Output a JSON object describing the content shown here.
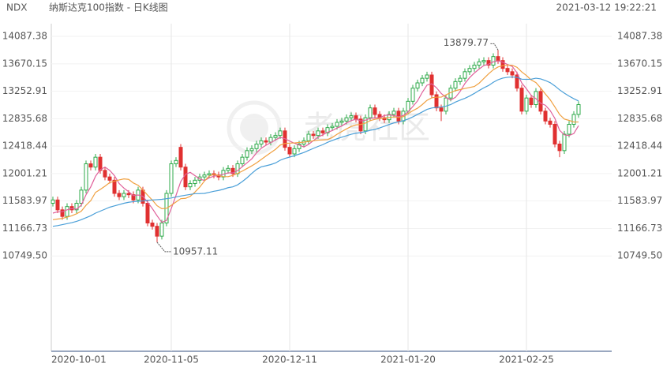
{
  "header": {
    "symbol": "NDX",
    "title": "纳斯达克100指数 - 日K线图",
    "timestamp": "2021-03-12 19:22:21"
  },
  "chart_data": {
    "type": "candlestick",
    "watermark": "老虎社区",
    "up_color": "#2eaa4a",
    "down_color": "#e03030",
    "ylim": [
      9300,
      14280
    ],
    "yticks": [
      14087.38,
      13670.15,
      13252.91,
      12835.68,
      12418.44,
      12001.21,
      11583.97,
      11166.73,
      {
        "value": 10749.5,
        "label": "10749.50"
      }
    ],
    "categories": [
      "2020-10-01",
      null,
      null,
      null,
      null,
      null,
      null,
      null,
      null,
      null,
      null,
      null,
      null,
      null,
      null,
      null,
      null,
      null,
      null,
      null,
      null,
      null,
      null,
      null,
      null,
      "2020-11-05",
      null,
      null,
      null,
      null,
      null,
      null,
      null,
      null,
      null,
      null,
      null,
      null,
      null,
      null,
      null,
      null,
      null,
      null,
      null,
      null,
      null,
      null,
      null,
      null,
      "2020-12-11",
      null,
      null,
      null,
      null,
      null,
      null,
      null,
      null,
      null,
      null,
      null,
      null,
      null,
      null,
      null,
      null,
      null,
      null,
      null,
      null,
      null,
      null,
      null,
      null,
      "2021-01-20",
      null,
      null,
      null,
      null,
      null,
      null,
      null,
      null,
      null,
      null,
      null,
      null,
      null,
      null,
      null,
      null,
      null,
      null,
      null,
      null,
      null,
      null,
      null,
      null,
      "2021-02-25",
      null,
      null,
      null,
      null,
      null,
      null,
      null,
      null,
      null,
      null,
      null
    ],
    "candles": [
      [
        11550,
        11650,
        11500,
        11600
      ],
      [
        11600,
        11650,
        11400,
        11450
      ],
      [
        11450,
        11500,
        11300,
        11350
      ],
      [
        11350,
        11550,
        11300,
        11500
      ],
      [
        11500,
        11550,
        11400,
        11450
      ],
      [
        11450,
        11600,
        11400,
        11550
      ],
      [
        11550,
        11800,
        11500,
        11750
      ],
      [
        11750,
        12200,
        11700,
        12150
      ],
      [
        12150,
        12200,
        12050,
        12100
      ],
      [
        12100,
        12300,
        12050,
        12250
      ],
      [
        12250,
        12300,
        12000,
        12050
      ],
      [
        12050,
        12100,
        11900,
        11950
      ],
      [
        11950,
        12000,
        11850,
        11900
      ],
      [
        11900,
        11950,
        11650,
        11700
      ],
      [
        11700,
        11750,
        11600,
        11650
      ],
      [
        11650,
        11750,
        11600,
        11700
      ],
      [
        11700,
        11750,
        11630,
        11680
      ],
      [
        11680,
        11730,
        11550,
        11600
      ],
      [
        11600,
        11800,
        11550,
        11750
      ],
      [
        11750,
        11800,
        11500,
        11550
      ],
      [
        11550,
        11600,
        11200,
        11250
      ],
      [
        11250,
        11300,
        11150,
        11200
      ],
      [
        11200,
        11250,
        10957.11,
        11050
      ],
      [
        11050,
        11300,
        11000,
        11250
      ],
      [
        11250,
        11750,
        11200,
        11700
      ],
      [
        11700,
        12200,
        11650,
        12150
      ],
      [
        12150,
        12250,
        12100,
        12200
      ],
      [
        12400,
        12450,
        12050,
        12100
      ],
      [
        12100,
        12150,
        11750,
        11800
      ],
      [
        11800,
        11900,
        11750,
        11850
      ],
      [
        11850,
        11950,
        11800,
        11900
      ],
      [
        11900,
        12000,
        11850,
        11950
      ],
      [
        11950,
        12030,
        11900,
        11980
      ],
      [
        11980,
        12050,
        11930,
        12000
      ],
      [
        12000,
        12050,
        11930,
        11980
      ],
      [
        11980,
        12030,
        11900,
        11950
      ],
      [
        11950,
        12100,
        11900,
        12050
      ],
      [
        12050,
        12130,
        12000,
        12080
      ],
      [
        12080,
        12130,
        11950,
        12000
      ],
      [
        12000,
        12200,
        11950,
        12150
      ],
      [
        12150,
        12300,
        12100,
        12250
      ],
      [
        12250,
        12400,
        12200,
        12350
      ],
      [
        12350,
        12430,
        12300,
        12380
      ],
      [
        12380,
        12500,
        12330,
        12450
      ],
      [
        12450,
        12550,
        12400,
        12500
      ],
      [
        12500,
        12550,
        12430,
        12480
      ],
      [
        12480,
        12600,
        12430,
        12550
      ],
      [
        12550,
        12630,
        12500,
        12580
      ],
      [
        12580,
        12700,
        12530,
        12650
      ],
      [
        12650,
        12700,
        12350,
        12400
      ],
      [
        12400,
        12450,
        12250,
        12300
      ],
      [
        12300,
        12430,
        12250,
        12380
      ],
      [
        12380,
        12500,
        12330,
        12450
      ],
      [
        12450,
        12550,
        12400,
        12500
      ],
      [
        12500,
        12650,
        12450,
        12600
      ],
      [
        12600,
        12650,
        12530,
        12580
      ],
      [
        12580,
        12700,
        12530,
        12650
      ],
      [
        12650,
        12700,
        12570,
        12620
      ],
      [
        12620,
        12750,
        12570,
        12700
      ],
      [
        12700,
        12770,
        12650,
        12720
      ],
      [
        12720,
        12830,
        12670,
        12780
      ],
      [
        12780,
        12850,
        12730,
        12800
      ],
      [
        12800,
        12900,
        12750,
        12850
      ],
      [
        12850,
        12930,
        12800,
        12880
      ],
      [
        12880,
        12930,
        12780,
        12830
      ],
      [
        12830,
        12880,
        12600,
        12650
      ],
      [
        12650,
        12900,
        12600,
        12850
      ],
      [
        12850,
        13050,
        12800,
        13000
      ],
      [
        13000,
        13050,
        12850,
        12900
      ],
      [
        12900,
        12950,
        12800,
        12850
      ],
      [
        12850,
        12900,
        12770,
        12820
      ],
      [
        12820,
        12950,
        12770,
        12900
      ],
      [
        12900,
        13000,
        12850,
        12950
      ],
      [
        12950,
        13000,
        12750,
        12800
      ],
      [
        12800,
        13000,
        12750,
        12950
      ],
      [
        12950,
        13150,
        12900,
        13100
      ],
      [
        13100,
        13350,
        13050,
        13300
      ],
      [
        13300,
        13430,
        13250,
        13380
      ],
      [
        13380,
        13500,
        13330,
        13450
      ],
      [
        13450,
        13550,
        13400,
        13500
      ],
      [
        13500,
        13550,
        13150,
        13200
      ],
      [
        13200,
        13250,
        12950,
        13000
      ],
      [
        13000,
        13050,
        12800,
        12950
      ],
      [
        12950,
        13200,
        12900,
        13150
      ],
      [
        13150,
        13350,
        13100,
        13300
      ],
      [
        13300,
        13450,
        13250,
        13400
      ],
      [
        13400,
        13500,
        13350,
        13450
      ],
      [
        13450,
        13600,
        13400,
        13550
      ],
      [
        13550,
        13650,
        13500,
        13600
      ],
      [
        13600,
        13700,
        13550,
        13650
      ],
      [
        13650,
        13750,
        13600,
        13700
      ],
      [
        13700,
        13770,
        13650,
        13720
      ],
      [
        13720,
        13770,
        13600,
        13650
      ],
      [
        13650,
        13830,
        13600,
        13780
      ],
      [
        13780,
        13879.77,
        13670,
        13720
      ],
      [
        13720,
        13770,
        13550,
        13600
      ],
      [
        13600,
        13650,
        13500,
        13550
      ],
      [
        13550,
        13600,
        13450,
        13500
      ],
      [
        13500,
        13550,
        13250,
        13300
      ],
      [
        13300,
        13350,
        12900,
        12950
      ],
      [
        12950,
        13200,
        12900,
        13150
      ],
      [
        13150,
        13200,
        13000,
        13050
      ],
      [
        13050,
        13300,
        13000,
        13250
      ],
      [
        13250,
        13300,
        12900,
        12950
      ],
      [
        12950,
        13000,
        12750,
        12800
      ],
      [
        12800,
        12850,
        12700,
        12750
      ],
      [
        12750,
        12800,
        12400,
        12450
      ],
      [
        12450,
        12500,
        12250,
        12350
      ],
      [
        12350,
        12650,
        12300,
        12600
      ],
      [
        12600,
        12800,
        12550,
        12750
      ],
      [
        12750,
        12950,
        12700,
        12900
      ],
      [
        12900,
        13100,
        12850,
        13050
      ]
    ],
    "series": [
      {
        "color": "#e0609a",
        "values": [
          11400,
          11420,
          11420,
          11450,
          11470,
          11460,
          11520,
          11680,
          11800,
          11960,
          12060,
          12100,
          12050,
          11970,
          11850,
          11780,
          11726,
          11666,
          11676,
          11656,
          11566,
          11470,
          11360,
          11260,
          11290,
          11470,
          11670,
          11880,
          11990,
          12020,
          11970,
          11920,
          11896,
          11936,
          11962,
          11972,
          11992,
          12012,
          12012,
          12046,
          12106,
          12166,
          12226,
          12316,
          12386,
          12432,
          12472,
          12512,
          12552,
          12532,
          12496,
          12462,
          12436,
          12406,
          12446,
          12502,
          12556,
          12590,
          12630,
          12654,
          12694,
          12724,
          12770,
          12806,
          12828,
          12802,
          12812,
          12842,
          12846,
          12850,
          12884,
          12894,
          12884,
          12864,
          12884,
          12940,
          13020,
          13106,
          13236,
          13346,
          13366,
          13306,
          13220,
          13160,
          13120,
          13160,
          13250,
          13370,
          13460,
          13530,
          13590,
          13644,
          13664,
          13700,
          13714,
          13694,
          13660,
          13630,
          13534,
          13380,
          13290,
          13190,
          13140,
          13070,
          13040,
          12960,
          12840,
          12660,
          12590,
          12580,
          12610,
          12730
        ]
      },
      {
        "color": "#f0a040",
        "values": [
          11300,
          11310,
          11320,
          11340,
          11360,
          11390,
          11430,
          11520,
          11590,
          11715,
          11760,
          11810,
          11865,
          11885,
          11905,
          11920,
          11913,
          11858,
          11823,
          11753,
          11673,
          11598,
          11513,
          11468,
          11473,
          11518,
          11570,
          11620,
          11625,
          11655,
          11720,
          11795,
          11888,
          11963,
          11991,
          11971,
          11956,
          11954,
          11974,
          12004,
          12039,
          12079,
          12119,
          12164,
          12216,
          12269,
          12319,
          12369,
          12434,
          12459,
          12464,
          12467,
          12474,
          12479,
          12489,
          12499,
          12509,
          12513,
          12518,
          12550,
          12598,
          12640,
          12680,
          12718,
          12741,
          12748,
          12768,
          12806,
          12826,
          12839,
          12843,
          12853,
          12863,
          12855,
          12867,
          12912,
          12957,
          12995,
          13050,
          13115,
          13153,
          13163,
          13163,
          13198,
          13233,
          13263,
          13278,
          13295,
          13310,
          13325,
          13375,
          13447,
          13517,
          13580,
          13622,
          13642,
          13652,
          13647,
          13617,
          13547,
          13492,
          13425,
          13385,
          13302,
          13210,
          13125,
          13015,
          12900,
          12830,
          12810,
          12785,
          12785
        ]
      },
      {
        "color": "#4a9fd8",
        "values": [
          11200,
          11210,
          11225,
          11240,
          11255,
          11275,
          11300,
          11330,
          11360,
          11400,
          11430,
          11460,
          11490,
          11510,
          11530,
          11550,
          11565,
          11575,
          11580,
          11585,
          11595,
          11600,
          11605,
          11610,
          11620,
          11630,
          11645,
          11660,
          11672,
          11684,
          11696,
          11697,
          11700,
          11716,
          11732,
          11745,
          11763,
          11787,
          11800,
          11830,
          11880,
          11937,
          12004,
          12064,
          12104,
          12120,
          12138,
          12162,
          12204,
          12232,
          12252,
          12273,
          12297,
          12322,
          12353,
          12384,
          12414,
          12441,
          12476,
          12505,
          12531,
          12554,
          12577,
          12599,
          12615,
          12624,
          12639,
          12660,
          12672,
          12695,
          12721,
          12747,
          12772,
          12787,
          12804,
          12830,
          12863,
          12901,
          12938,
          12977,
          12998,
          13008,
          13013,
          13027,
          13050,
          13088,
          13118,
          13145,
          13180,
          13220,
          13264,
          13305,
          13340,
          13389,
          13428,
          13453,
          13465,
          13471,
          13464,
          13436,
          13434,
          13436,
          13451,
          13441,
          13416,
          13384,
          13334,
          13274,
          13224,
          13179,
          13139,
          13105
        ]
      }
    ]
  }
}
